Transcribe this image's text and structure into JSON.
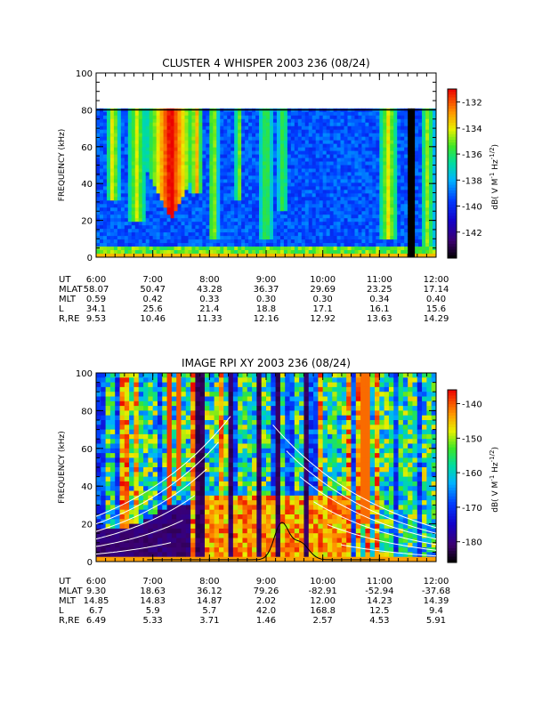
{
  "chart_data": [
    {
      "type": "heatmap",
      "title": "CLUSTER 4 WHISPER 2003 236 (08/24)",
      "ylabel": "FREQUENCY (kHz)",
      "ylim": [
        0,
        100
      ],
      "yticks": [
        "0",
        "20",
        "40",
        "60",
        "80",
        "100"
      ],
      "yticks_values": [
        0,
        20,
        40,
        60,
        80,
        100
      ],
      "x_ticks": [
        "6:00",
        "7:00",
        "8:00",
        "9:00",
        "10:00",
        "11:00",
        "12:00"
      ],
      "xlim_hours": [
        6,
        12
      ],
      "data_top_khz": 80,
      "colorbar": {
        "label": "dB( V M^-1 Hz^-1/2 )",
        "label_main": "dB( V M",
        "label_end": " Hz",
        "sup1": "-1",
        "sup2": "-1/2",
        "label_close": ")",
        "min": -144,
        "max": -131,
        "ticks": [
          "-132",
          "-134",
          "-136",
          "-138",
          "-140",
          "-142"
        ],
        "tick_values": [
          -132,
          -134,
          -136,
          -138,
          -140,
          -142
        ]
      },
      "ephemeris": {
        "labels": [
          "UT",
          "MLAT",
          "MLT",
          "L",
          "R,RE"
        ],
        "UT": [
          "6:00",
          "7:00",
          "8:00",
          "9:00",
          "10:00",
          "11:00",
          "12:00"
        ],
        "MLAT": [
          "58.07",
          "50.47",
          "43.28",
          "36.37",
          "29.69",
          "23.25",
          "17.14"
        ],
        "MLT": [
          "0.59",
          "0.42",
          "0.33",
          "0.30",
          "0.30",
          "0.34",
          "0.40"
        ],
        "L": [
          "34.1",
          "25.6",
          "21.4",
          "18.8",
          "17.1",
          "16.1",
          "15.6"
        ],
        "R,RE": [
          "9.53",
          "10.46",
          "11.33",
          "12.16",
          "12.92",
          "13.63",
          "14.29"
        ]
      }
    },
    {
      "type": "heatmap",
      "title": "IMAGE RPI XY 2003 236 (08/24)",
      "ylabel": "FREQUENCY (kHz)",
      "ylim": [
        0,
        100
      ],
      "yticks": [
        "0",
        "20",
        "40",
        "60",
        "80",
        "100"
      ],
      "yticks_values": [
        0,
        20,
        40,
        60,
        80,
        100
      ],
      "x_ticks": [
        "6:00",
        "7:00",
        "8:00",
        "9:00",
        "10:00",
        "11:00",
        "12:00"
      ],
      "xlim_hours": [
        6,
        12
      ],
      "colorbar": {
        "label": "dB( V M^-1 Hz^-1/2 )",
        "label_main": "dB( V M",
        "label_end": " Hz",
        "sup1": "-1",
        "sup2": "-1/2",
        "label_close": ")",
        "min": -186,
        "max": -136,
        "ticks": [
          "-140",
          "-150",
          "-160",
          "-170",
          "-180"
        ],
        "tick_values": [
          -140,
          -150,
          -160,
          -170,
          -180
        ]
      },
      "ephemeris": {
        "labels": [
          "UT",
          "MLAT",
          "MLT",
          "L",
          "R,RE"
        ],
        "UT": [
          "6:00",
          "7:00",
          "8:00",
          "9:00",
          "10:00",
          "11:00",
          "12:00"
        ],
        "MLAT": [
          "9.30",
          "18.63",
          "36.12",
          "79.26",
          "-82.91",
          "-52.94",
          "-37.68"
        ],
        "MLT": [
          "14.85",
          "14.83",
          "14.87",
          "2.02",
          "12.00",
          "14.23",
          "14.39"
        ],
        "L": [
          "6.7",
          "5.9",
          "5.7",
          "42.0",
          "168.8",
          "12.5",
          "9.4"
        ],
        "R,RE": [
          "6.49",
          "5.33",
          "3.71",
          "1.46",
          "2.57",
          "4.53",
          "5.91"
        ]
      }
    }
  ]
}
